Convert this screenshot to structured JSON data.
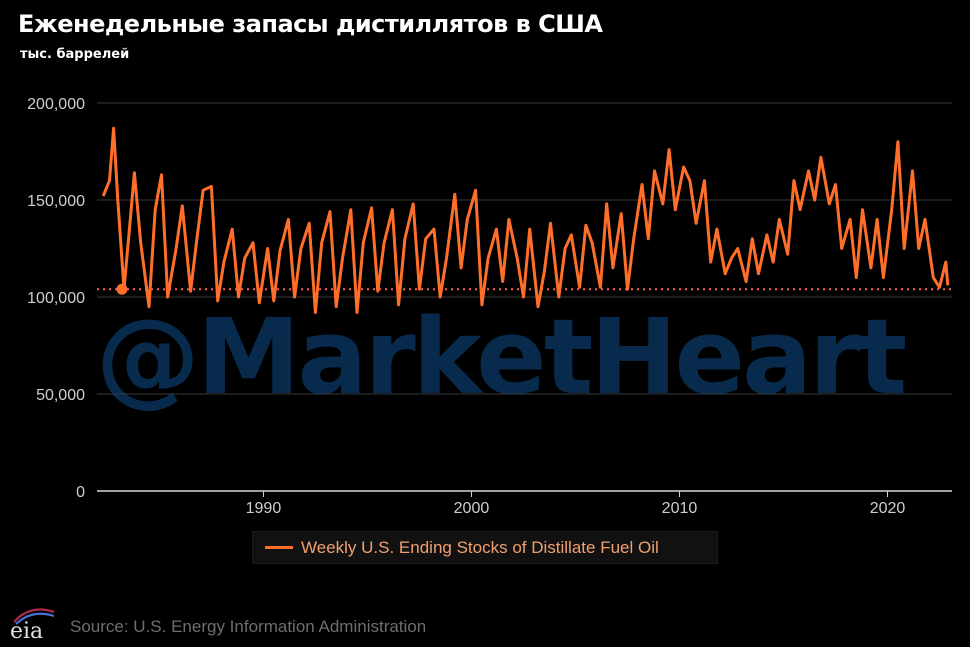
{
  "title": "Еженедельные запасы дистиллятов в США",
  "subtitle": "тыс. баррелей",
  "watermark": "@MarketHeart",
  "source": "Source: U.S. Energy Information Administration",
  "logo_text": "eia",
  "colors": {
    "series": "#ff6f2a",
    "grid": "#3a3a3a",
    "watermark": "#082b4d",
    "background": "#000000"
  },
  "chart_data": {
    "type": "line",
    "title": "Еженедельные запасы дистиллятов в США",
    "ylabel": "тыс. баррелей",
    "xlabel": "",
    "xlim": [
      1982.0,
      2023.1
    ],
    "ylim": [
      0,
      200000
    ],
    "y_ticks": [
      0,
      50000,
      100000,
      150000,
      200000
    ],
    "y_tick_labels": [
      "0",
      "50,000",
      "100,000",
      "150,000",
      "200,000"
    ],
    "x_ticks": [
      1990,
      2000,
      2010,
      2020
    ],
    "x_tick_labels": [
      "1990",
      "2000",
      "2010",
      "2020"
    ],
    "grid": "horizontal",
    "legend": "bottom",
    "series": [
      {
        "name": "Weekly U.S. Ending Stocks of Distillate Fuel Oil",
        "x": [
          1982.3,
          1982.6,
          1982.8,
          1983.0,
          1983.3,
          1983.6,
          1983.8,
          1984.1,
          1984.5,
          1984.8,
          1985.1,
          1985.4,
          1985.8,
          1986.1,
          1986.5,
          1986.8,
          1987.1,
          1987.5,
          1987.8,
          1988.1,
          1988.5,
          1988.8,
          1989.1,
          1989.5,
          1989.8,
          1990.2,
          1990.5,
          1990.8,
          1991.2,
          1991.5,
          1991.8,
          1992.2,
          1992.5,
          1992.8,
          1993.2,
          1993.5,
          1993.8,
          1994.2,
          1994.5,
          1994.8,
          1995.2,
          1995.5,
          1995.8,
          1996.2,
          1996.5,
          1996.8,
          1997.2,
          1997.5,
          1997.8,
          1998.2,
          1998.5,
          1998.8,
          1999.2,
          1999.5,
          1999.8,
          2000.2,
          2000.5,
          2000.8,
          2001.2,
          2001.5,
          2001.8,
          2002.2,
          2002.5,
          2002.8,
          2003.2,
          2003.5,
          2003.8,
          2004.2,
          2004.5,
          2004.8,
          2005.2,
          2005.5,
          2005.8,
          2006.2,
          2006.5,
          2006.8,
          2007.2,
          2007.5,
          2007.8,
          2008.2,
          2008.5,
          2008.8,
          2009.2,
          2009.5,
          2009.8,
          2010.2,
          2010.5,
          2010.8,
          2011.2,
          2011.5,
          2011.8,
          2012.2,
          2012.5,
          2012.8,
          2013.2,
          2013.5,
          2013.8,
          2014.2,
          2014.5,
          2014.8,
          2015.2,
          2015.5,
          2015.8,
          2016.2,
          2016.5,
          2016.8,
          2017.2,
          2017.5,
          2017.8,
          2018.2,
          2018.5,
          2018.8,
          2019.2,
          2019.5,
          2019.8,
          2020.2,
          2020.5,
          2020.8,
          2021.2,
          2021.5,
          2021.8,
          2022.2,
          2022.5,
          2022.8,
          2022.9
        ],
        "values": [
          152000,
          160000,
          187000,
          150000,
          104000,
          140000,
          164000,
          128000,
          95000,
          145000,
          163000,
          100000,
          125000,
          147000,
          103000,
          130000,
          155000,
          157000,
          98000,
          118000,
          135000,
          100000,
          120000,
          128000,
          97000,
          125000,
          98000,
          124000,
          140000,
          100000,
          125000,
          138000,
          92000,
          128000,
          144000,
          95000,
          120000,
          145000,
          92000,
          128000,
          146000,
          103000,
          128000,
          145000,
          96000,
          130000,
          148000,
          104000,
          130000,
          135000,
          100000,
          120000,
          153000,
          115000,
          140000,
          155000,
          96000,
          120000,
          135000,
          108000,
          140000,
          120000,
          100000,
          135000,
          95000,
          113000,
          138000,
          100000,
          125000,
          132000,
          105000,
          137000,
          128000,
          105000,
          148000,
          115000,
          143000,
          104000,
          130000,
          158000,
          130000,
          165000,
          148000,
          176000,
          145000,
          167000,
          160000,
          138000,
          160000,
          118000,
          135000,
          112000,
          120000,
          125000,
          108000,
          130000,
          112000,
          132000,
          118000,
          140000,
          122000,
          160000,
          145000,
          165000,
          150000,
          172000,
          148000,
          158000,
          125000,
          140000,
          110000,
          145000,
          115000,
          140000,
          110000,
          145000,
          180000,
          125000,
          165000,
          125000,
          140000,
          110000,
          105000,
          118000,
          106000
        ],
        "reference_line": 104000,
        "marker": {
          "x": 1983.2,
          "y": 104000
        }
      }
    ]
  }
}
